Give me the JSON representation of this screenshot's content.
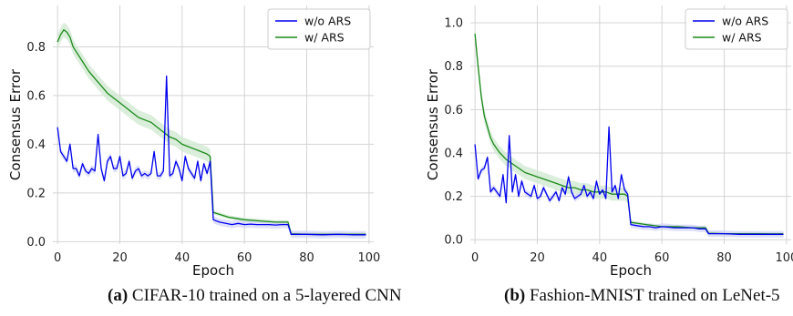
{
  "chart_data": [
    {
      "type": "line",
      "panel_label": "(a)",
      "caption": "CIFAR-10 trained on a 5-layered CNN",
      "xlabel": "Epoch",
      "ylabel": "Consensus Error",
      "xlim": [
        -1.5,
        101.5
      ],
      "ylim": [
        -0.01,
        0.97
      ],
      "xticks": [
        0,
        20,
        40,
        60,
        80,
        100
      ],
      "yticks": [
        0.0,
        0.2,
        0.4,
        0.6,
        0.8
      ],
      "ytick_labels": [
        "0.0",
        "0.2",
        "0.4",
        "0.6",
        "0.8"
      ],
      "grid": true,
      "legend_position": "top-right",
      "series": [
        {
          "name": "w/o ARS",
          "color": "#0000ee",
          "x": [
            0,
            1,
            2,
            3,
            4,
            5,
            6,
            7,
            8,
            9,
            10,
            11,
            12,
            13,
            14,
            15,
            16,
            17,
            18,
            19,
            20,
            21,
            22,
            23,
            24,
            25,
            26,
            27,
            28,
            29,
            30,
            31,
            32,
            33,
            34,
            35,
            36,
            37,
            38,
            39,
            40,
            41,
            42,
            43,
            44,
            45,
            46,
            47,
            48,
            49,
            50,
            52,
            54,
            56,
            58,
            60,
            62,
            64,
            66,
            68,
            70,
            72,
            74,
            75,
            80,
            85,
            90,
            95,
            99
          ],
          "y": [
            0.47,
            0.37,
            0.35,
            0.33,
            0.4,
            0.3,
            0.3,
            0.27,
            0.32,
            0.29,
            0.28,
            0.3,
            0.29,
            0.44,
            0.3,
            0.25,
            0.33,
            0.35,
            0.3,
            0.3,
            0.35,
            0.27,
            0.28,
            0.33,
            0.26,
            0.29,
            0.3,
            0.27,
            0.28,
            0.27,
            0.28,
            0.37,
            0.27,
            0.27,
            0.29,
            0.68,
            0.27,
            0.28,
            0.33,
            0.3,
            0.25,
            0.35,
            0.3,
            0.28,
            0.26,
            0.33,
            0.25,
            0.32,
            0.28,
            0.33,
            0.09,
            0.08,
            0.075,
            0.07,
            0.075,
            0.07,
            0.072,
            0.07,
            0.07,
            0.07,
            0.068,
            0.07,
            0.07,
            0.03,
            0.03,
            0.028,
            0.03,
            0.028,
            0.028
          ]
        },
        {
          "name": "w/ ARS",
          "color": "#1a8a1a",
          "band_color": "#cfe8cf",
          "x": [
            0,
            1,
            2,
            3,
            4,
            5,
            6,
            8,
            10,
            12,
            14,
            16,
            18,
            20,
            22,
            24,
            26,
            28,
            30,
            32,
            34,
            36,
            38,
            40,
            42,
            44,
            46,
            48,
            49,
            50,
            55,
            60,
            65,
            70,
            74,
            75,
            80,
            85,
            90,
            95,
            99
          ],
          "y": [
            0.82,
            0.85,
            0.87,
            0.86,
            0.84,
            0.8,
            0.78,
            0.74,
            0.7,
            0.67,
            0.64,
            0.61,
            0.59,
            0.57,
            0.55,
            0.53,
            0.51,
            0.5,
            0.49,
            0.47,
            0.45,
            0.43,
            0.42,
            0.4,
            0.39,
            0.38,
            0.37,
            0.36,
            0.35,
            0.12,
            0.1,
            0.09,
            0.085,
            0.08,
            0.08,
            0.032,
            0.03,
            0.03,
            0.03,
            0.03,
            0.03
          ]
        }
      ]
    },
    {
      "type": "line",
      "panel_label": "(b)",
      "caption": "Fashion-MNIST trained on LeNet-5",
      "xlabel": "Epoch",
      "ylabel": "Consensus Error",
      "xlim": [
        -1.5,
        101.5
      ],
      "ylim": [
        -0.02,
        1.08
      ],
      "xticks": [
        0,
        20,
        40,
        60,
        80,
        100
      ],
      "yticks": [
        0.0,
        0.2,
        0.4,
        0.6,
        0.8,
        1.0
      ],
      "ytick_labels": [
        "0.0",
        "0.2",
        "0.4",
        "0.6",
        "0.8",
        "1.0"
      ],
      "grid": true,
      "legend_position": "top-right",
      "series": [
        {
          "name": "w/o ARS",
          "color": "#0000ee",
          "x": [
            0,
            1,
            2,
            3,
            4,
            5,
            6,
            7,
            8,
            9,
            10,
            11,
            12,
            13,
            14,
            15,
            16,
            17,
            18,
            19,
            20,
            21,
            22,
            23,
            24,
            25,
            26,
            27,
            28,
            29,
            30,
            31,
            32,
            33,
            34,
            35,
            36,
            37,
            38,
            39,
            40,
            41,
            42,
            43,
            44,
            45,
            46,
            47,
            48,
            49,
            50,
            52,
            54,
            56,
            58,
            60,
            62,
            64,
            66,
            68,
            70,
            72,
            74,
            75,
            80,
            85,
            90,
            95,
            99
          ],
          "y": [
            0.44,
            0.28,
            0.32,
            0.33,
            0.38,
            0.22,
            0.24,
            0.22,
            0.2,
            0.3,
            0.17,
            0.48,
            0.22,
            0.3,
            0.2,
            0.27,
            0.22,
            0.21,
            0.2,
            0.25,
            0.19,
            0.2,
            0.24,
            0.21,
            0.18,
            0.2,
            0.22,
            0.18,
            0.24,
            0.21,
            0.29,
            0.22,
            0.19,
            0.2,
            0.21,
            0.25,
            0.2,
            0.22,
            0.19,
            0.27,
            0.21,
            0.23,
            0.19,
            0.52,
            0.22,
            0.25,
            0.19,
            0.3,
            0.23,
            0.21,
            0.07,
            0.065,
            0.06,
            0.06,
            0.055,
            0.06,
            0.058,
            0.055,
            0.055,
            0.055,
            0.055,
            0.05,
            0.05,
            0.028,
            0.028,
            0.025,
            0.025,
            0.025,
            0.025
          ]
        },
        {
          "name": "w/ ARS",
          "color": "#1a8a1a",
          "band_color": "#cfe8cf",
          "x": [
            0,
            1,
            2,
            3,
            4,
            5,
            6,
            7,
            8,
            10,
            12,
            14,
            16,
            18,
            20,
            22,
            24,
            26,
            28,
            30,
            32,
            34,
            36,
            38,
            40,
            42,
            44,
            46,
            48,
            49,
            50,
            55,
            60,
            65,
            70,
            74,
            75,
            80,
            85,
            90,
            95,
            99
          ],
          "y": [
            0.95,
            0.8,
            0.66,
            0.57,
            0.52,
            0.47,
            0.44,
            0.42,
            0.4,
            0.37,
            0.35,
            0.33,
            0.31,
            0.3,
            0.29,
            0.28,
            0.27,
            0.26,
            0.25,
            0.24,
            0.24,
            0.23,
            0.23,
            0.22,
            0.22,
            0.22,
            0.21,
            0.21,
            0.21,
            0.2,
            0.08,
            0.07,
            0.06,
            0.06,
            0.055,
            0.055,
            0.03,
            0.028,
            0.028,
            0.028,
            0.027,
            0.027
          ]
        }
      ]
    }
  ]
}
